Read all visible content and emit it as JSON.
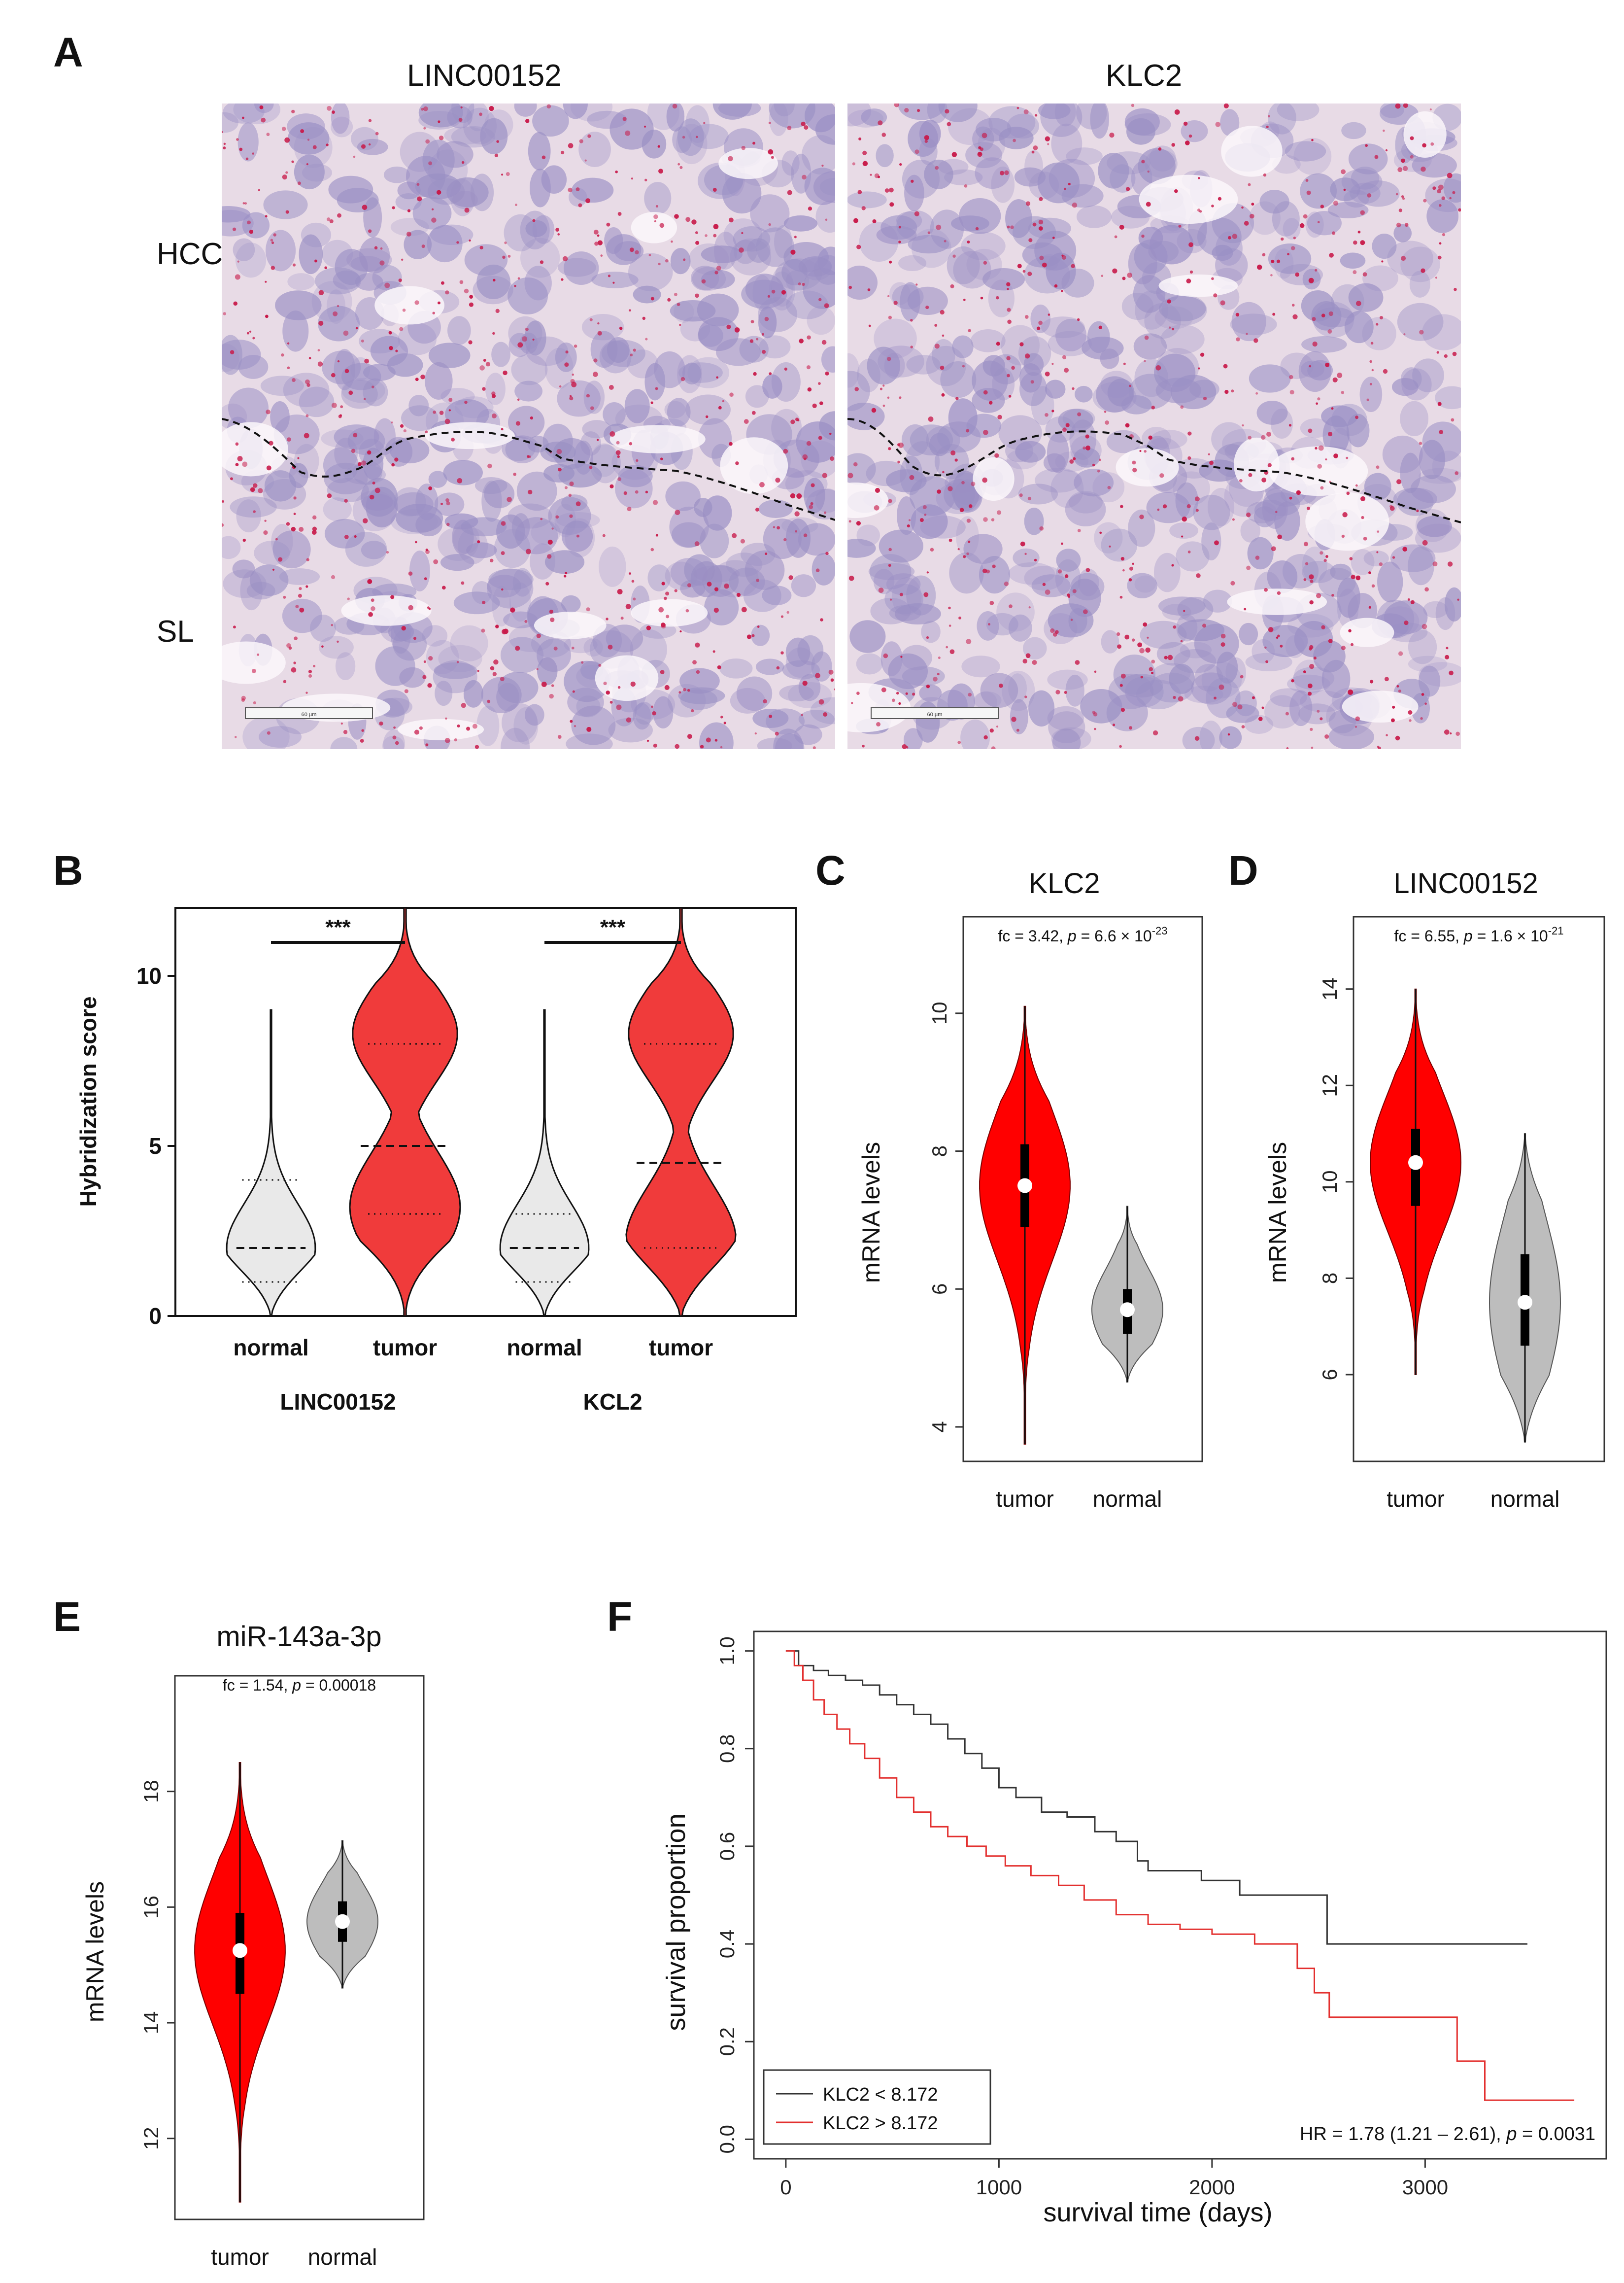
{
  "panels": {
    "A": {
      "letter": "A",
      "titles": [
        "LINC00152",
        "KLC2"
      ],
      "row_labels": [
        "HCC",
        "SL"
      ],
      "scalebar_text": "60 µm"
    },
    "B": {
      "letter": "B"
    },
    "C": {
      "letter": "C"
    },
    "D": {
      "letter": "D"
    },
    "E": {
      "letter": "E"
    },
    "F": {
      "letter": "F"
    }
  },
  "colors": {
    "tumor_red": "#f03b3b",
    "tumor_red_strong": "#ff0000",
    "normal_gray": "#bdbdbd",
    "normal_light": "#e9e9e9",
    "km_black": "#333333",
    "km_red": "#e3302f",
    "tissue_bg": "#e8dbe6",
    "nucleus": "#9a8fc4",
    "stain_dot": "#c81a4a"
  },
  "chart_data": [
    {
      "id": "B",
      "type": "violin",
      "ylabel": "Hybridization score",
      "ylim": [
        0,
        12
      ],
      "yticks": [
        0,
        5,
        10
      ],
      "groups": [
        {
          "gene": "LINC00152",
          "category": "normal",
          "min": 0,
          "max": 9,
          "q1": 1,
          "median": 2,
          "q3": 4
        },
        {
          "gene": "LINC00152",
          "category": "tumor",
          "min": 0,
          "max": 12,
          "q1": 3,
          "median": 5,
          "q3": 8
        },
        {
          "gene": "KCL2",
          "category": "normal",
          "min": 0,
          "max": 9,
          "q1": 1,
          "median": 2,
          "q3": 3
        },
        {
          "gene": "KCL2",
          "category": "tumor",
          "min": 0,
          "max": 12,
          "q1": 2,
          "median": 4.5,
          "q3": 8
        }
      ],
      "gene_labels": [
        "LINC00152",
        "KCL2"
      ],
      "significance": [
        "***",
        "***"
      ]
    },
    {
      "id": "C",
      "type": "violin",
      "title": "KLC2",
      "ylabel": "mRNA levels",
      "annotation": {
        "fc": "fc = 3.42, ",
        "p": "p",
        "rest": " = 6.6 × 10",
        "exp": "-23"
      },
      "ylim": [
        3.5,
        11.4
      ],
      "yticks": [
        4,
        6,
        8,
        10
      ],
      "groups": [
        {
          "category": "tumor",
          "min": 3.75,
          "max": 10.1,
          "q1": 6.9,
          "median": 7.5,
          "q3": 8.1
        },
        {
          "category": "normal",
          "min": 4.65,
          "max": 7.2,
          "q1": 5.35,
          "median": 5.7,
          "q3": 6.0
        }
      ]
    },
    {
      "id": "D",
      "type": "violin",
      "title": "LINC00152",
      "ylabel": "mRNA levels",
      "annotation": {
        "fc": "fc = 6.55, ",
        "p": "p",
        "rest": " = 1.6 × 10",
        "exp": "-21"
      },
      "ylim": [
        4.2,
        15.5
      ],
      "yticks": [
        6,
        8,
        10,
        12,
        14
      ],
      "groups": [
        {
          "category": "tumor",
          "min": 6.0,
          "max": 14.0,
          "q1": 9.5,
          "median": 10.4,
          "q3": 11.1
        },
        {
          "category": "normal",
          "min": 4.6,
          "max": 11.0,
          "q1": 6.6,
          "median": 7.5,
          "q3": 8.5
        }
      ]
    },
    {
      "id": "E",
      "type": "violin",
      "title": "miR-143a-3p",
      "ylabel": "mRNA levels",
      "annotation": {
        "fc": "fc = 1.54, ",
        "p": "p",
        "rest": " = 0.00018",
        "exp": ""
      },
      "ylim": [
        10.6,
        20.0
      ],
      "yticks": [
        12,
        14,
        16,
        18
      ],
      "groups": [
        {
          "category": "tumor",
          "min": 10.9,
          "max": 18.5,
          "q1": 14.5,
          "median": 15.25,
          "q3": 15.9
        },
        {
          "category": "normal",
          "min": 14.6,
          "max": 17.15,
          "q1": 15.4,
          "median": 15.75,
          "q3": 16.1
        }
      ]
    },
    {
      "id": "F",
      "type": "line",
      "xlabel": "survival time (days)",
      "ylabel": "survival proportion",
      "xlim": [
        -150,
        3850
      ],
      "ylim": [
        -0.04,
        1.04
      ],
      "xticks": [
        0,
        1000,
        2000,
        3000
      ],
      "yticks": [
        "0.0",
        "0.2",
        "0.4",
        "0.6",
        "0.8",
        "1.0"
      ],
      "annotation": {
        "pre": "HR = 1.78 (1.21 – 2.61), ",
        "p": "p",
        "post": " = 0.0031"
      },
      "legend_position": "bottom-left",
      "series": [
        {
          "name": "KLC2 < 8.172",
          "x": [
            0,
            60,
            130,
            200,
            280,
            360,
            440,
            520,
            600,
            680,
            760,
            840,
            920,
            1000,
            1080,
            1200,
            1320,
            1450,
            1550,
            1650,
            1700,
            1800,
            1950,
            2130,
            2250,
            2400,
            2540,
            2700,
            3000,
            3480
          ],
          "y": [
            1.0,
            0.97,
            0.96,
            0.95,
            0.94,
            0.93,
            0.91,
            0.89,
            0.87,
            0.85,
            0.82,
            0.79,
            0.76,
            0.72,
            0.7,
            0.67,
            0.66,
            0.63,
            0.61,
            0.57,
            0.55,
            0.55,
            0.53,
            0.5,
            0.5,
            0.5,
            0.4,
            0.4,
            0.4,
            0.4
          ]
        },
        {
          "name": "KLC2 > 8.172",
          "x": [
            0,
            40,
            80,
            130,
            180,
            240,
            300,
            370,
            440,
            520,
            600,
            680,
            760,
            850,
            940,
            1030,
            1150,
            1280,
            1400,
            1550,
            1700,
            1850,
            2000,
            2200,
            2400,
            2480,
            2550,
            2700,
            2900,
            3150,
            3280,
            3700
          ],
          "y": [
            1.0,
            0.97,
            0.94,
            0.9,
            0.87,
            0.84,
            0.81,
            0.78,
            0.74,
            0.7,
            0.67,
            0.64,
            0.62,
            0.6,
            0.58,
            0.56,
            0.54,
            0.52,
            0.49,
            0.46,
            0.44,
            0.43,
            0.42,
            0.4,
            0.35,
            0.3,
            0.25,
            0.25,
            0.25,
            0.16,
            0.08,
            0.08
          ]
        }
      ]
    }
  ]
}
